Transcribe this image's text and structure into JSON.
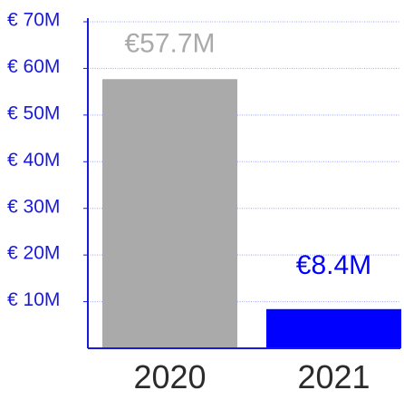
{
  "chart_data": {
    "type": "bar",
    "categories": [
      "2020",
      "2021"
    ],
    "values": [
      57.7,
      8.4
    ],
    "data_labels": [
      "€57.7M",
      "€8.4M"
    ],
    "title": "",
    "xlabel": "",
    "ylabel": "",
    "ylim": [
      0,
      70
    ],
    "y_ticks": [
      {
        "value": 70,
        "label": "€ 70M"
      },
      {
        "value": 60,
        "label": "€ 60M"
      },
      {
        "value": 50,
        "label": "€ 50M"
      },
      {
        "value": 40,
        "label": "€ 40M"
      },
      {
        "value": 30,
        "label": "€ 30M"
      },
      {
        "value": 20,
        "label": "€ 20M"
      },
      {
        "value": 10,
        "label": "€ 10M"
      }
    ],
    "grid": true,
    "legend": "none",
    "colors": {
      "bars": [
        "#aaaaaa",
        "#0000ff"
      ],
      "data_labels": [
        "#aaaaaa",
        "#0000ff"
      ],
      "axis": "#1a1adb",
      "tick_labels": "#1a1adb",
      "category_labels": "#2b2b2b",
      "grid": "#9aa3ff"
    }
  }
}
